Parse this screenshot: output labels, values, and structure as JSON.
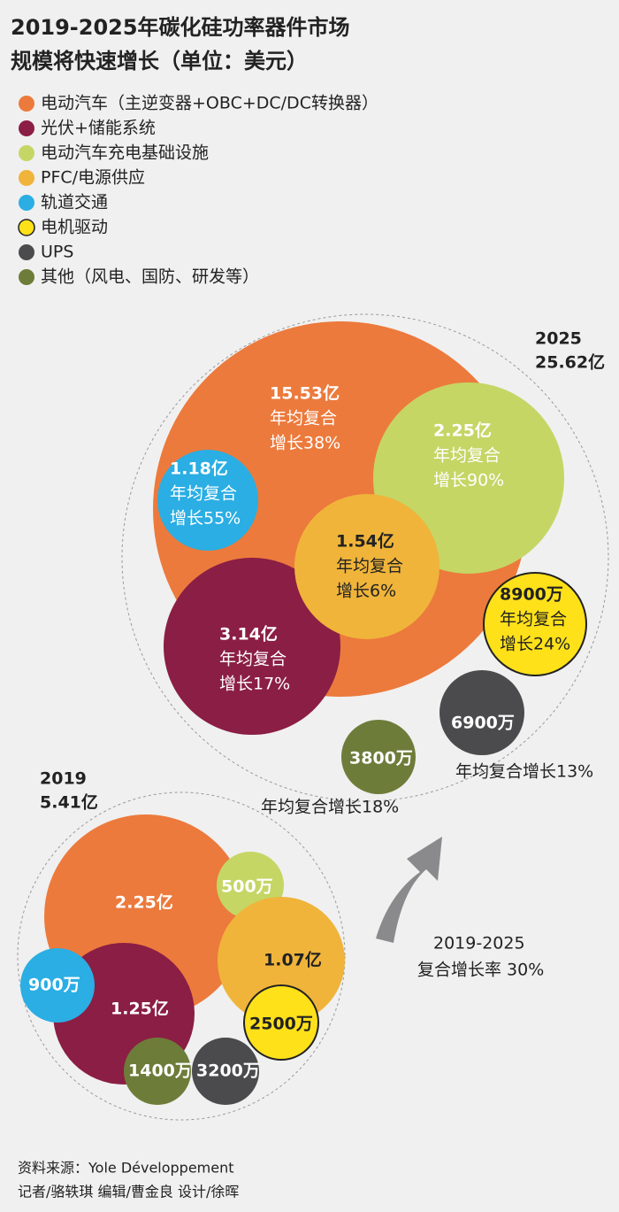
{
  "title": [
    "2019-2025年碳化硅功率器件市场",
    "规模将快速增长（单位：美元）"
  ],
  "legend": [
    {
      "label": "电动汽车（主逆变器+OBC+DC/DC转换器）",
      "color": "#ec7a3c"
    },
    {
      "label": "光伏+储能系统",
      "color": "#8b1e44"
    },
    {
      "label": "电动汽车充电基础设施",
      "color": "#c5d665"
    },
    {
      "label": "PFC/电源供应",
      "color": "#f0b43a"
    },
    {
      "label": "轨道交通",
      "color": "#2aaee3"
    },
    {
      "label": "电机驱动",
      "color": "#ffe11a"
    },
    {
      "label": "UPS",
      "color": "#4b4b4d"
    },
    {
      "label": "其他（风电、国防、研发等）",
      "color": "#6e7c3a"
    }
  ],
  "groups": [
    {
      "year": "2025",
      "total": "25.62亿",
      "bubbles": [
        {
          "lines": [
            "15.53亿",
            "年均复合",
            "增长38%"
          ]
        },
        {
          "lines": [
            "3.14亿",
            "年均复合",
            "增长17%"
          ]
        },
        {
          "lines": [
            "2.25亿",
            "年均复合",
            "增长90%"
          ]
        },
        {
          "lines": [
            "1.54亿",
            "年均复合",
            "增长6%"
          ]
        },
        {
          "lines": [
            "1.18亿",
            "年均复合",
            "增长55%"
          ]
        },
        {
          "lines": [
            "8900万",
            "年均复合",
            "增长24%"
          ]
        },
        {
          "lines": [
            "6900万"
          ]
        },
        {
          "lines": [
            "3800万"
          ]
        }
      ],
      "notes": [
        "年均复合增长13%",
        "年均复合增长18%"
      ]
    },
    {
      "year": "2019",
      "total": "5.41亿",
      "bubbles": [
        {
          "lines": [
            "2.25亿"
          ]
        },
        {
          "lines": [
            "1.25亿"
          ]
        },
        {
          "lines": [
            "500万"
          ]
        },
        {
          "lines": [
            "1.07亿"
          ]
        },
        {
          "lines": [
            "900万"
          ]
        },
        {
          "lines": [
            "2500万"
          ]
        },
        {
          "lines": [
            "3200万"
          ]
        },
        {
          "lines": [
            "1400万"
          ]
        }
      ],
      "notes": []
    }
  ],
  "arrow_label": [
    "2019-2025",
    "复合增长率 30%"
  ],
  "footer": [
    "资料来源：Yole Développement",
    "记者/骆轶琪  编辑/曹金良  设计/徐晖"
  ]
}
